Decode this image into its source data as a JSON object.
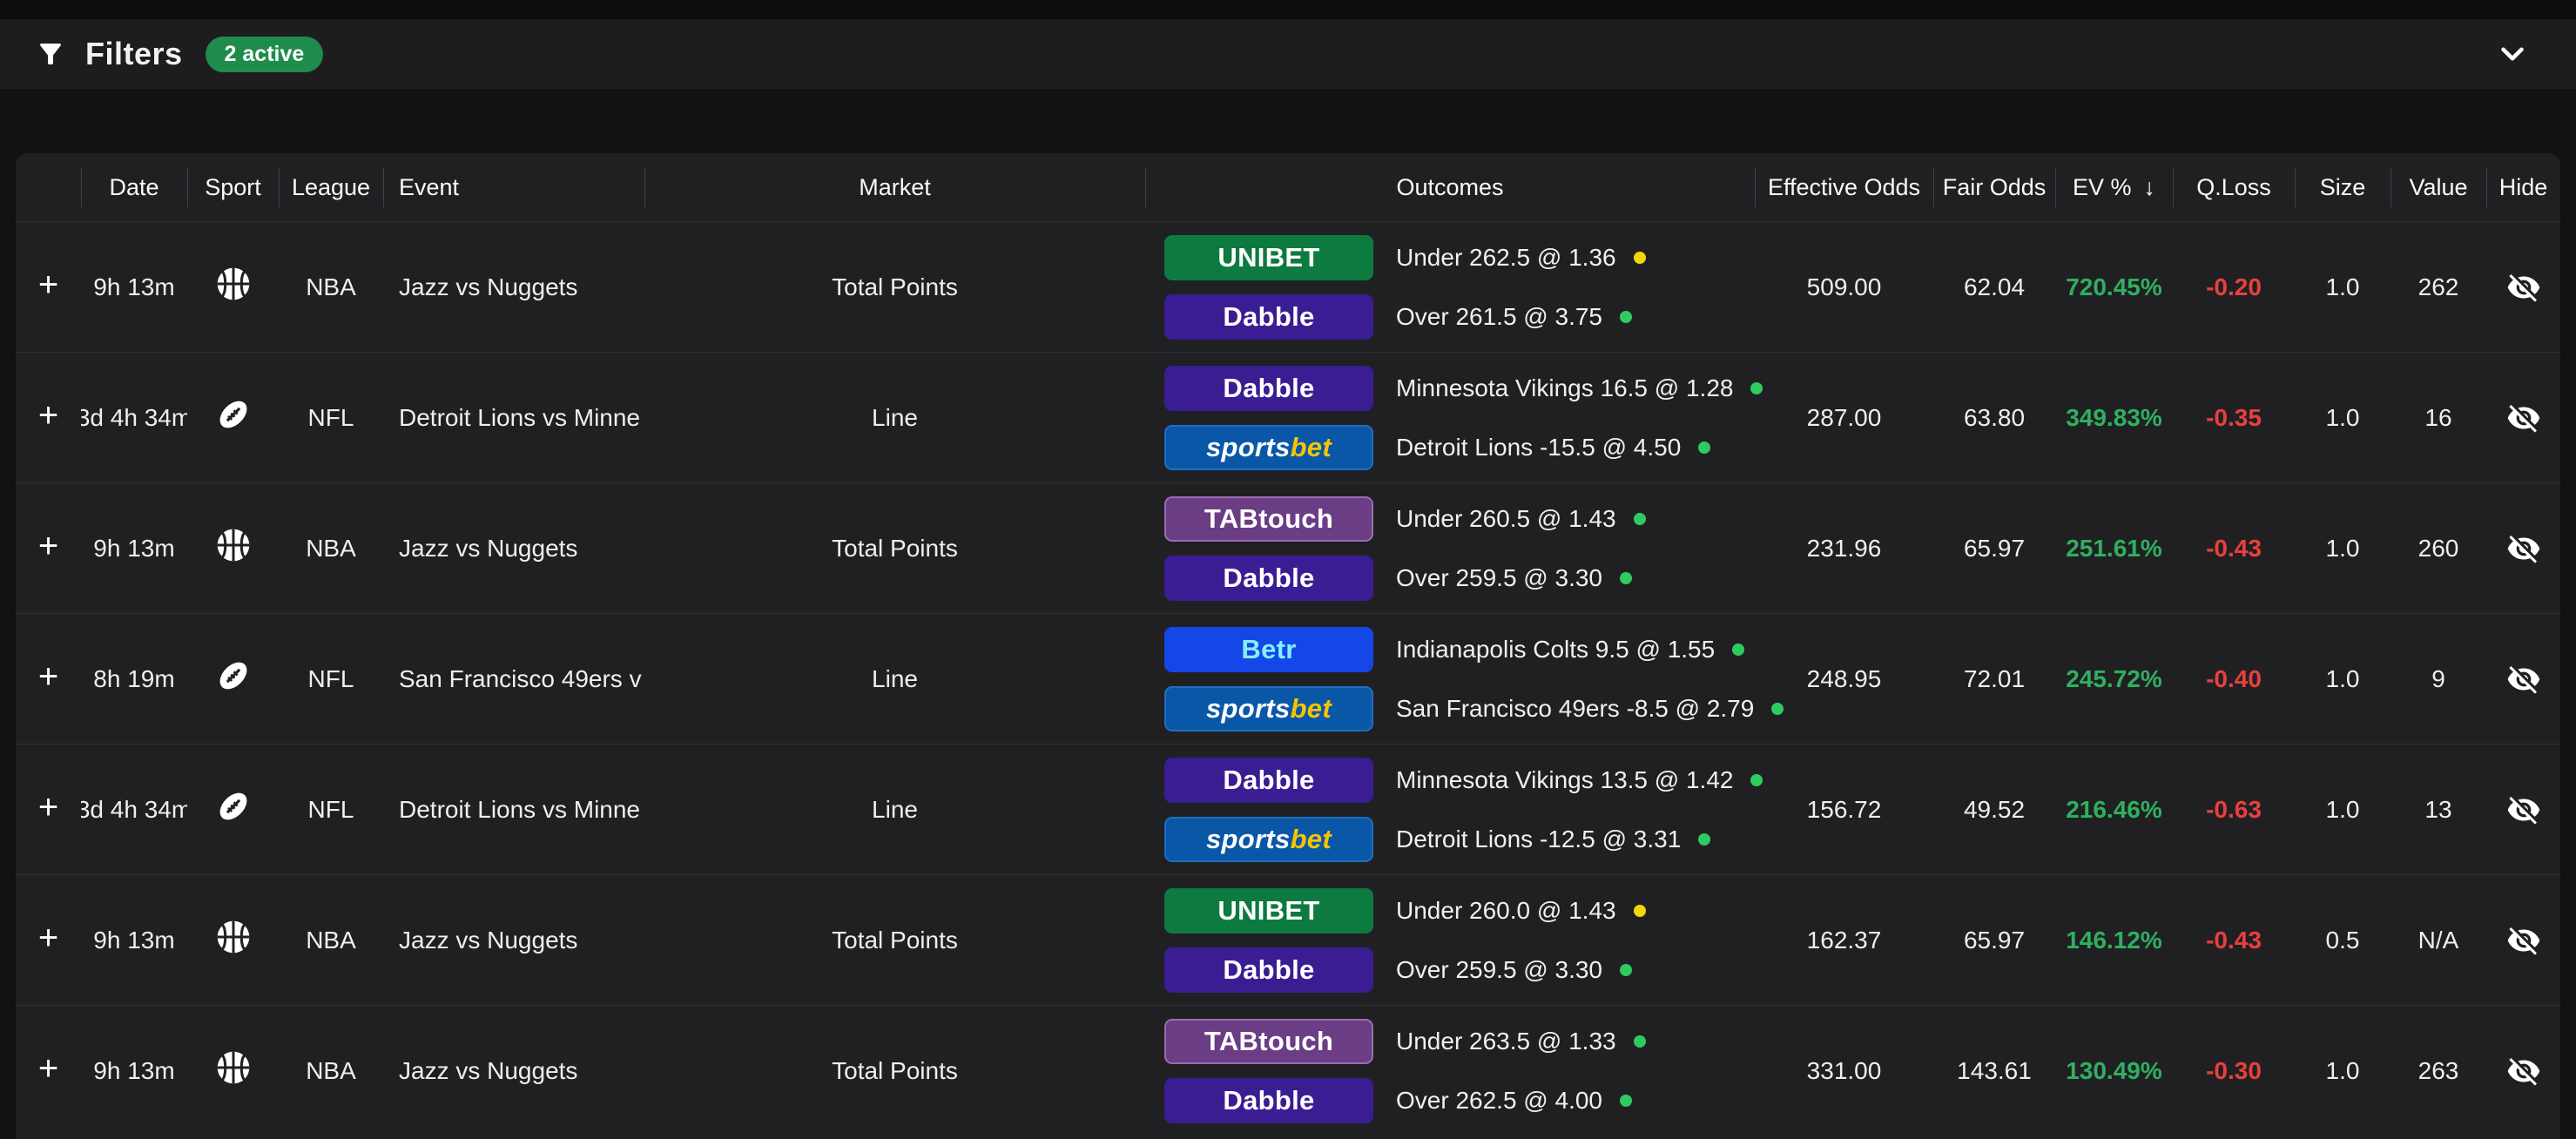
{
  "filter_bar": {
    "title": "Filters",
    "active_badge": "2 active",
    "filter_icon": "filter-funnel-icon",
    "collapse_icon": "chevron-down-icon"
  },
  "table": {
    "headers": {
      "date": "Date",
      "sport": "Sport",
      "league": "League",
      "event": "Event",
      "market": "Market",
      "outcomes": "Outcomes",
      "effective_odds": "Effective Odds",
      "fair_odds": "Fair Odds",
      "ev": "EV %",
      "ev_sort_indicator": "↓",
      "qloss": "Q.Loss",
      "size": "Size",
      "value": "Value",
      "hide": "Hide"
    },
    "expand_symbol": "+",
    "hide_icon": "eye-off-icon",
    "rows": [
      {
        "date": "9h 13m",
        "sport": "basketball",
        "league": "NBA",
        "event": "Jazz vs Nuggets",
        "market": "Total Points",
        "outcomes": [
          {
            "book": "unibet",
            "line": "Under 262.5 @ 1.36",
            "dot": "yellow"
          },
          {
            "book": "dabble",
            "line": "Over 261.5 @ 3.75",
            "dot": "green"
          }
        ],
        "effective_odds": "509.00",
        "fair_odds": "62.04",
        "ev": "720.45%",
        "qloss": "-0.20",
        "size": "1.0",
        "value": "262"
      },
      {
        "date": "3d 4h 34m",
        "sport": "american-football",
        "league": "NFL",
        "event": "Detroit Lions vs Minne",
        "market": "Line",
        "outcomes": [
          {
            "book": "dabble",
            "line": "Minnesota Vikings 16.5 @ 1.28",
            "dot": "green"
          },
          {
            "book": "sportsbet",
            "line": "Detroit Lions -15.5 @ 4.50",
            "dot": "green"
          }
        ],
        "effective_odds": "287.00",
        "fair_odds": "63.80",
        "ev": "349.83%",
        "qloss": "-0.35",
        "size": "1.0",
        "value": "16"
      },
      {
        "date": "9h 13m",
        "sport": "basketball",
        "league": "NBA",
        "event": "Jazz vs Nuggets",
        "market": "Total Points",
        "outcomes": [
          {
            "book": "tabtouch",
            "line": "Under 260.5 @ 1.43",
            "dot": "green"
          },
          {
            "book": "dabble",
            "line": "Over 259.5 @ 3.30",
            "dot": "green"
          }
        ],
        "effective_odds": "231.96",
        "fair_odds": "65.97",
        "ev": "251.61%",
        "qloss": "-0.43",
        "size": "1.0",
        "value": "260"
      },
      {
        "date": "8h 19m",
        "sport": "american-football",
        "league": "NFL",
        "event": "San Francisco 49ers v",
        "market": "Line",
        "outcomes": [
          {
            "book": "betr",
            "line": "Indianapolis Colts 9.5 @ 1.55",
            "dot": "green"
          },
          {
            "book": "sportsbet",
            "line": "San Francisco 49ers -8.5 @ 2.79",
            "dot": "green"
          }
        ],
        "effective_odds": "248.95",
        "fair_odds": "72.01",
        "ev": "245.72%",
        "qloss": "-0.40",
        "size": "1.0",
        "value": "9"
      },
      {
        "date": "3d 4h 34m",
        "sport": "american-football",
        "league": "NFL",
        "event": "Detroit Lions vs Minne",
        "market": "Line",
        "outcomes": [
          {
            "book": "dabble",
            "line": "Minnesota Vikings 13.5 @ 1.42",
            "dot": "green"
          },
          {
            "book": "sportsbet",
            "line": "Detroit Lions -12.5 @ 3.31",
            "dot": "green"
          }
        ],
        "effective_odds": "156.72",
        "fair_odds": "49.52",
        "ev": "216.46%",
        "qloss": "-0.63",
        "size": "1.0",
        "value": "13"
      },
      {
        "date": "9h 13m",
        "sport": "basketball",
        "league": "NBA",
        "event": "Jazz vs Nuggets",
        "market": "Total Points",
        "outcomes": [
          {
            "book": "unibet",
            "line": "Under 260.0 @ 1.43",
            "dot": "yellow"
          },
          {
            "book": "dabble",
            "line": "Over 259.5 @ 3.30",
            "dot": "green"
          }
        ],
        "effective_odds": "162.37",
        "fair_odds": "65.97",
        "ev": "146.12%",
        "qloss": "-0.43",
        "size": "0.5",
        "value": "N/A"
      },
      {
        "date": "9h 13m",
        "sport": "basketball",
        "league": "NBA",
        "event": "Jazz vs Nuggets",
        "market": "Total Points",
        "outcomes": [
          {
            "book": "tabtouch",
            "line": "Under 263.5 @ 1.33",
            "dot": "green"
          },
          {
            "book": "dabble",
            "line": "Over 262.5 @ 4.00",
            "dot": "green"
          }
        ],
        "effective_odds": "331.00",
        "fair_odds": "143.61",
        "ev": "130.49%",
        "qloss": "-0.30",
        "size": "1.0",
        "value": "263"
      }
    ]
  },
  "bookmakers": {
    "unibet": {
      "label": "UNIBET",
      "bg": "#0d7a40",
      "color": "#ffffff"
    },
    "dabble": {
      "label": "Dabble",
      "bg": "#3a1d92",
      "color": "#ffffff"
    },
    "tabtouch": {
      "label": "TABtouch",
      "bg": "#6b3d85",
      "color": "#ffffff",
      "border": "#9a6cb3"
    },
    "sportsbet": {
      "label": "sportsbet",
      "bg": "#0a57a8",
      "border": "#1e6fc0",
      "parts": [
        {
          "text": "sports",
          "color": "#ffffff"
        },
        {
          "text": "bet",
          "color": "#f6c500"
        }
      ]
    },
    "betr": {
      "label": "Betr",
      "bg": "#1546e8",
      "color": "#86efff"
    }
  },
  "colors": {
    "dot_green": "#2ecc5e",
    "dot_yellow": "#f5d60a",
    "ev_green": "#2fb060",
    "loss_red": "#e8403d",
    "badge_green": "#1e8c4a"
  }
}
